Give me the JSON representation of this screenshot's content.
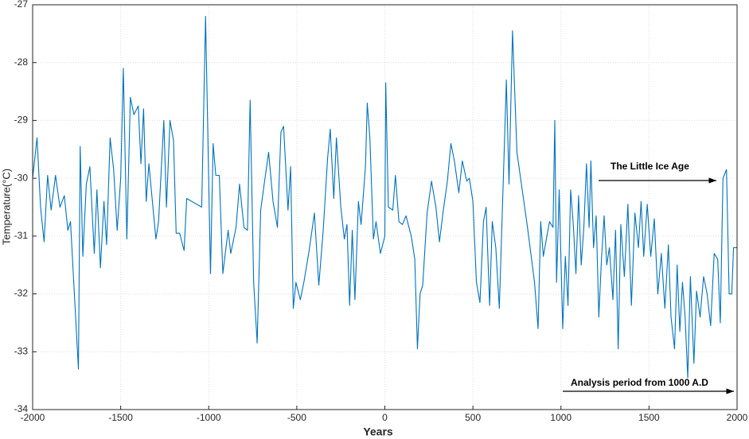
{
  "chart_data": {
    "type": "line",
    "xlabel": "Years",
    "ylabel": "Temperature(°C)",
    "annotations": [
      "The Little Ice Age",
      "Analysis period from 1000 A.D"
    ],
    "xlim": [
      -2000,
      2000
    ],
    "xticks": [
      -2000,
      -1500,
      -1000,
      -500,
      0,
      500,
      1000,
      1500,
      2000
    ],
    "ylim": [
      -34,
      -27
    ],
    "yticks": [
      -34,
      -33,
      -32,
      -31,
      -30,
      -29,
      -28,
      -27
    ],
    "grid": true,
    "series": [
      {
        "color": "#0072bd",
        "x": [
          -2000,
          -1975,
          -1955,
          -1935,
          -1915,
          -1895,
          -1870,
          -1845,
          -1820,
          -1800,
          -1785,
          -1740,
          -1730,
          -1715,
          -1695,
          -1675,
          -1650,
          -1635,
          -1615,
          -1595,
          -1580,
          -1560,
          -1540,
          -1520,
          -1500,
          -1485,
          -1465,
          -1445,
          -1425,
          -1400,
          -1385,
          -1370,
          -1355,
          -1340,
          -1300,
          -1285,
          -1255,
          -1240,
          -1220,
          -1200,
          -1185,
          -1165,
          -1140,
          -1125,
          -1040,
          -1018,
          -990,
          -975,
          -960,
          -940,
          -920,
          -890,
          -875,
          -845,
          -825,
          -800,
          -780,
          -765,
          -745,
          -725,
          -705,
          -685,
          -660,
          -635,
          -610,
          -590,
          -575,
          -550,
          -535,
          -520,
          -505,
          -480,
          -460,
          -430,
          -400,
          -375,
          -350,
          -325,
          -310,
          -290,
          -275,
          -250,
          -230,
          -215,
          -200,
          -185,
          -170,
          -150,
          -135,
          -110,
          -100,
          -85,
          -65,
          -50,
          -25,
          0,
          5,
          20,
          45,
          60,
          80,
          100,
          120,
          150,
          170,
          185,
          200,
          215,
          240,
          265,
          290,
          310,
          330,
          355,
          375,
          395,
          420,
          440,
          465,
          480,
          500,
          520,
          540,
          560,
          575,
          595,
          610,
          630,
          650,
          680,
          690,
          705,
          725,
          750,
          780,
          810,
          850,
          870,
          885,
          900,
          920,
          935,
          955,
          965,
          975,
          990,
          1010,
          1025,
          1040,
          1055,
          1070,
          1085,
          1100,
          1115,
          1130,
          1145,
          1160,
          1170,
          1185,
          1200,
          1215,
          1230,
          1245,
          1260,
          1275,
          1295,
          1310,
          1325,
          1340,
          1360,
          1380,
          1400,
          1420,
          1440,
          1455,
          1470,
          1490,
          1510,
          1530,
          1550,
          1570,
          1590,
          1610,
          1625,
          1645,
          1660,
          1675,
          1690,
          1705,
          1720,
          1735,
          1755,
          1770,
          1790,
          1810,
          1830,
          1850,
          1870,
          1890,
          1905,
          1920,
          1940,
          1955,
          1970,
          1980,
          2000
        ],
        "values": [
          -30.0,
          -29.3,
          -30.5,
          -31.1,
          -29.95,
          -30.55,
          -29.95,
          -30.5,
          -30.3,
          -30.9,
          -30.75,
          -33.3,
          -29.45,
          -31.35,
          -30.1,
          -29.8,
          -31.3,
          -30.2,
          -31.55,
          -30.4,
          -31.15,
          -29.3,
          -29.85,
          -30.9,
          -30.0,
          -28.1,
          -31.05,
          -28.6,
          -28.9,
          -28.75,
          -29.75,
          -28.8,
          -30.4,
          -29.75,
          -31.05,
          -30.75,
          -29.0,
          -30.5,
          -29.0,
          -29.35,
          -30.95,
          -30.95,
          -31.25,
          -30.35,
          -30.5,
          -27.2,
          -31.65,
          -29.4,
          -29.95,
          -29.95,
          -31.65,
          -30.9,
          -31.3,
          -30.85,
          -30.1,
          -30.85,
          -30.9,
          -28.65,
          -31.8,
          -32.85,
          -30.55,
          -30.1,
          -29.55,
          -30.4,
          -30.85,
          -29.2,
          -29.1,
          -30.55,
          -29.8,
          -32.25,
          -31.8,
          -32.1,
          -31.8,
          -31.25,
          -30.6,
          -31.85,
          -30.9,
          -29.65,
          -29.15,
          -30.35,
          -29.3,
          -30.5,
          -31.05,
          -30.8,
          -32.2,
          -30.9,
          -32.1,
          -30.4,
          -30.8,
          -29.8,
          -28.7,
          -29.3,
          -31.05,
          -30.75,
          -31.3,
          -31.0,
          -28.35,
          -30.5,
          -30.55,
          -29.95,
          -30.75,
          -30.8,
          -30.65,
          -31.0,
          -31.4,
          -32.95,
          -32.0,
          -31.85,
          -30.6,
          -30.05,
          -30.5,
          -31.1,
          -30.6,
          -30.05,
          -29.4,
          -29.7,
          -30.25,
          -29.7,
          -30.05,
          -30.0,
          -30.4,
          -31.8,
          -32.15,
          -30.75,
          -30.5,
          -32.2,
          -30.75,
          -31.2,
          -32.25,
          -29.3,
          -28.3,
          -30.1,
          -27.45,
          -29.55,
          -30.2,
          -30.85,
          -31.8,
          -32.6,
          -30.75,
          -31.35,
          -31.0,
          -30.75,
          -30.85,
          -29.0,
          -31.8,
          -30.2,
          -32.6,
          -31.35,
          -32.2,
          -30.2,
          -30.8,
          -31.65,
          -30.3,
          -31.5,
          -30.85,
          -29.75,
          -30.85,
          -29.7,
          -31.2,
          -30.65,
          -32.4,
          -31.4,
          -30.65,
          -31.5,
          -31.2,
          -32.1,
          -30.9,
          -32.95,
          -30.8,
          -31.7,
          -30.45,
          -32.2,
          -30.6,
          -31.2,
          -30.4,
          -31.35,
          -30.45,
          -31.35,
          -30.7,
          -32.0,
          -31.3,
          -32.25,
          -31.15,
          -32.4,
          -32.95,
          -31.5,
          -32.65,
          -31.8,
          -32.4,
          -33.45,
          -31.7,
          -33.2,
          -31.95,
          -32.4,
          -31.7,
          -32.0,
          -32.55,
          -31.3,
          -31.4,
          -32.5,
          -30.0,
          -29.85,
          -32.0,
          -32.0,
          -31.2,
          -31.2
        ]
      }
    ]
  }
}
